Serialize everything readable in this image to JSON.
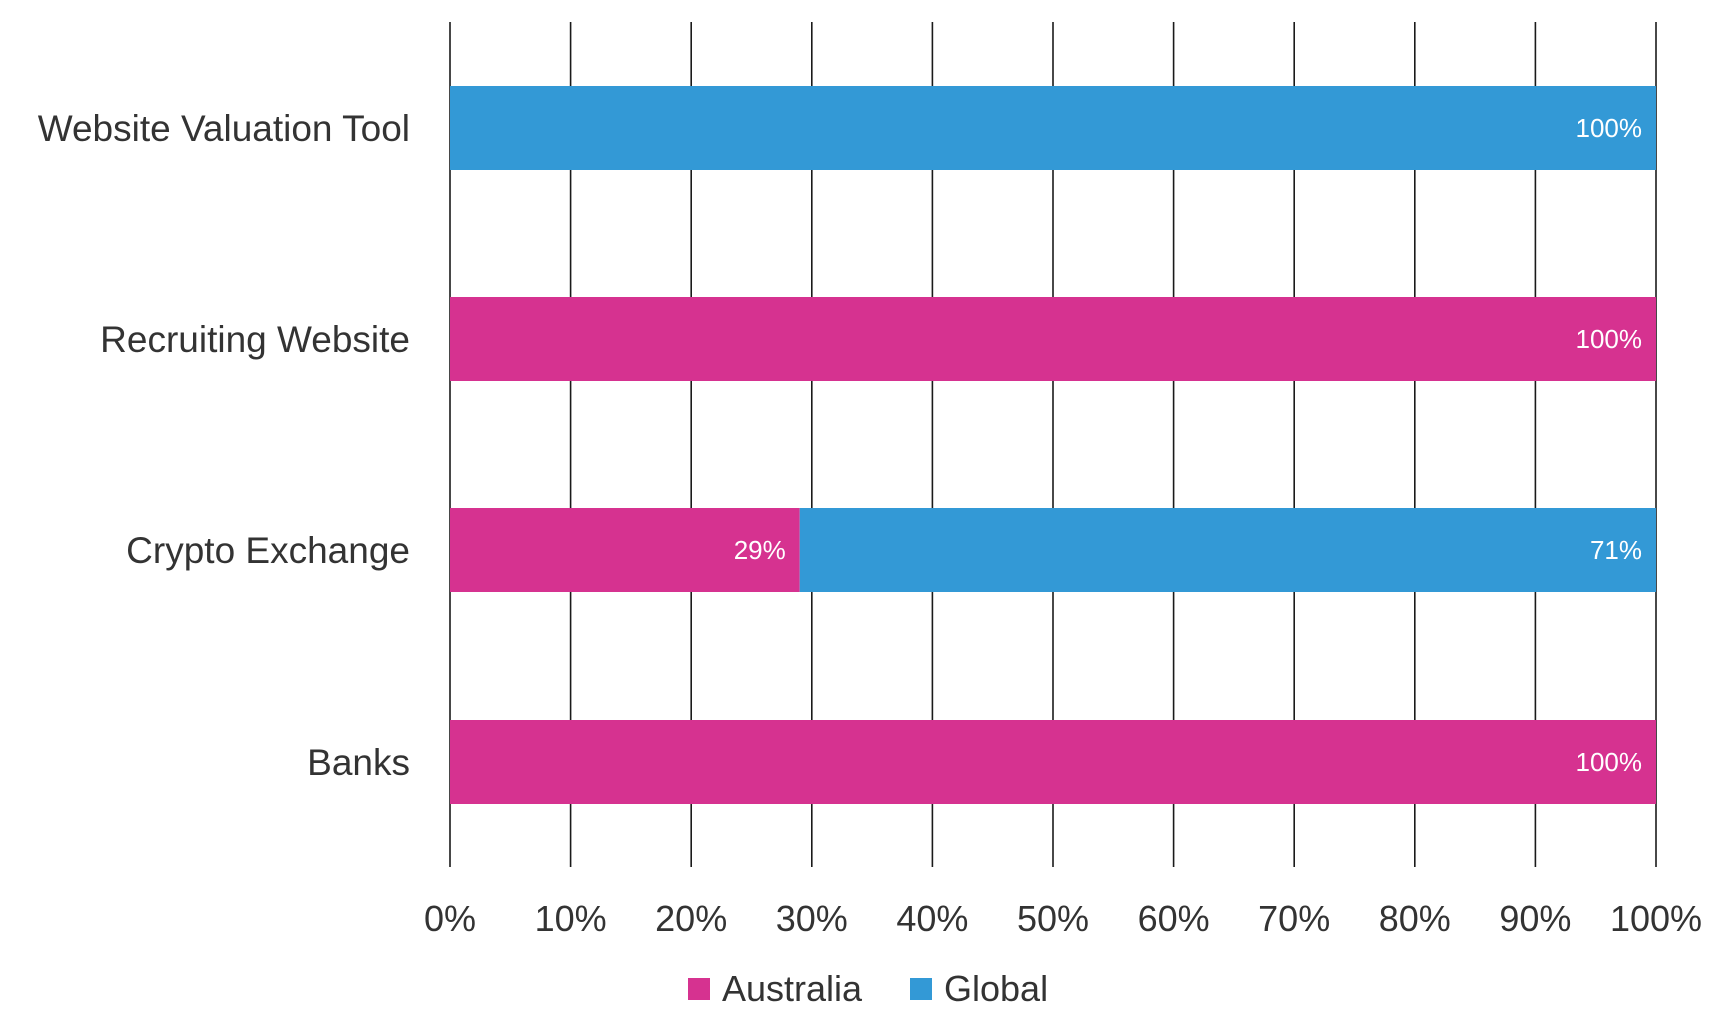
{
  "chart_data": {
    "type": "bar",
    "orientation": "horizontal",
    "stacked": true,
    "percent_stacked": true,
    "categories": [
      "Website Valuation Tool",
      "Recruiting Website",
      "Crypto Exchange",
      "Banks"
    ],
    "series": [
      {
        "name": "Australia",
        "color": "#d63290",
        "values": [
          0,
          100,
          29,
          100
        ]
      },
      {
        "name": "Global",
        "color": "#3399d6",
        "values": [
          100,
          0,
          71,
          0
        ]
      }
    ],
    "xlim": [
      0,
      100
    ],
    "x_ticks": [
      "0%",
      "10%",
      "20%",
      "30%",
      "40%",
      "50%",
      "60%",
      "70%",
      "80%",
      "90%",
      "100%"
    ],
    "data_labels_visible": true,
    "label_suffix": "%",
    "grid": "vertical",
    "legend": "bottom-center"
  }
}
